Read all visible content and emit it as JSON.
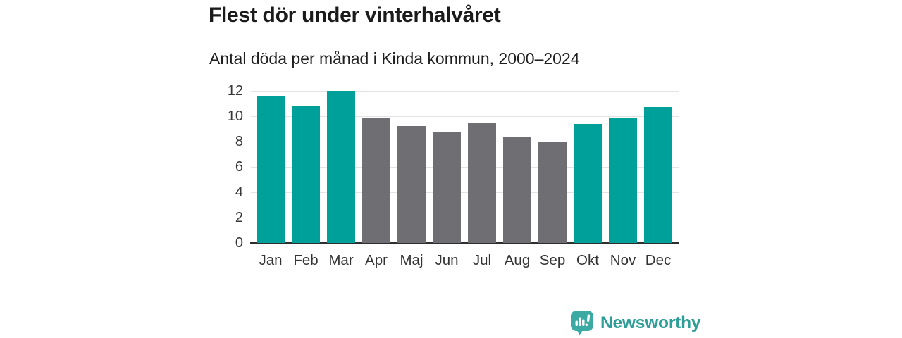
{
  "header": {
    "title": "Flest dör under vinterhalvåret",
    "subtitle": "Antal döda per månad i Kinda kommun, 2000–2024"
  },
  "chart_data": {
    "type": "bar",
    "title": "Flest dör under vinterhalvåret",
    "subtitle": "Antal döda per månad i Kinda kommun, 2000–2024",
    "categories": [
      "Jan",
      "Feb",
      "Mar",
      "Apr",
      "Maj",
      "Jun",
      "Jul",
      "Aug",
      "Sep",
      "Okt",
      "Nov",
      "Dec"
    ],
    "values": [
      11.6,
      10.8,
      12.0,
      9.9,
      9.2,
      8.7,
      9.5,
      8.4,
      8.0,
      9.4,
      9.9,
      10.7
    ],
    "bar_season_key": [
      "winter",
      "winter",
      "winter",
      "summer",
      "summer",
      "summer",
      "summer",
      "summer",
      "summer",
      "winter",
      "winter",
      "winter"
    ],
    "colors": {
      "winter": "#00a09a",
      "summer": "#6e6e73"
    },
    "xlabel": "",
    "ylabel": "",
    "ylim": [
      0,
      12
    ],
    "yticks": [
      0,
      2,
      4,
      6,
      8,
      10,
      12
    ],
    "grid": true,
    "legend": false
  },
  "footer": {
    "brand": "Newsworthy",
    "brand_color": "#2f9e98",
    "icon_color": "#3baaa2",
    "logo_icon": "newsworthy-speech-bubble-bar-chart-icon"
  }
}
